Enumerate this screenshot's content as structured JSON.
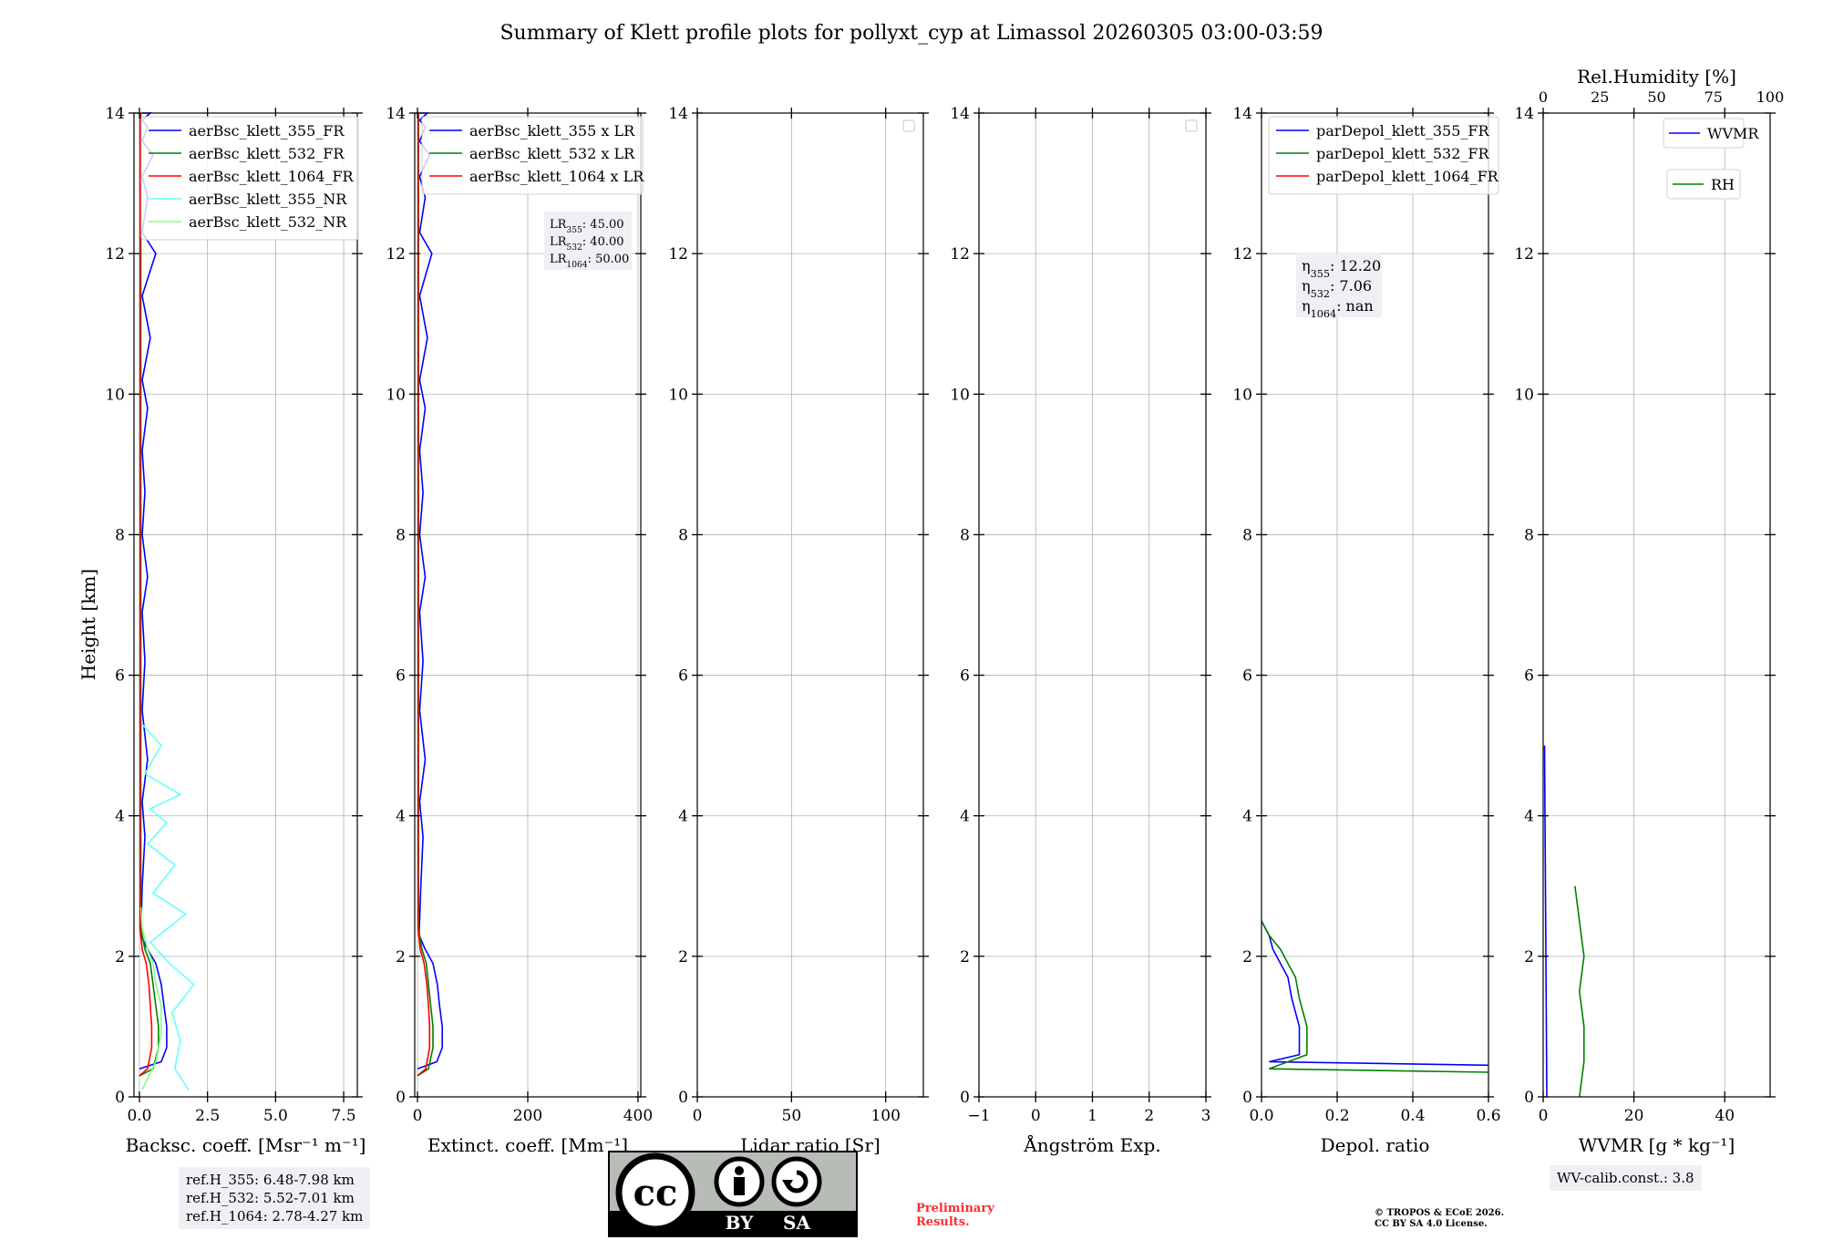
{
  "title": "Summary of Klett profile plots for pollyxt_cyp at Limassol 20260305 03:00-03:59",
  "ylabel": "Height [km]",
  "colors": {
    "c355": "#0000ff",
    "c532": "#008000",
    "c1064": "#ff0000",
    "c355nr": "#66ffff",
    "c532nr": "#80ff80"
  },
  "chart_data": [
    {
      "type": "line",
      "name": "backscatter",
      "xlabel": "Backsc. coeff. [Msr⁻¹ m⁻¹]",
      "xlim": [
        -0.2,
        8.0
      ],
      "xticks": [
        "0.0",
        "2.5",
        "5.0",
        "7.5"
      ],
      "xtick_values": [
        0,
        2.5,
        5,
        7.5
      ],
      "ylim": [
        0,
        14
      ],
      "yticks": [
        "0",
        "2",
        "4",
        "6",
        "8",
        "10",
        "12",
        "14"
      ],
      "legend": [
        "aerBsc_klett_355_FR",
        "aerBsc_klett_532_FR",
        "aerBsc_klett_1064_FR",
        "aerBsc_klett_355_NR",
        "aerBsc_klett_532_NR"
      ],
      "series": [
        {
          "name": "aerBsc_klett_355_FR",
          "color": "#0000ff",
          "x": [
            0.0,
            0.8,
            1.0,
            1.0,
            0.9,
            0.8,
            0.6,
            0.3,
            0.05,
            0.1,
            0.2,
            0.1,
            0.3,
            0.1,
            0.2,
            0.1,
            0.3,
            0.1,
            0.2,
            0.1,
            0.3,
            0.1,
            0.4,
            0.1,
            0.6,
            0.1,
            0.3,
            0.1,
            0.5,
            0.1,
            0.3,
            0.1,
            0.4,
            0.1,
            0.3
          ],
          "y": [
            0.4,
            0.5,
            0.7,
            1.0,
            1.3,
            1.6,
            1.9,
            2.1,
            2.3,
            3.0,
            3.7,
            4.2,
            4.8,
            5.5,
            6.2,
            6.9,
            7.4,
            8.0,
            8.6,
            9.2,
            9.8,
            10.2,
            10.8,
            11.4,
            12.0,
            12.3,
            12.8,
            13.1,
            13.4,
            13.6,
            13.8,
            13.9,
            14.0,
            14.0,
            14.0
          ]
        },
        {
          "name": "aerBsc_klett_532_FR",
          "color": "#008000",
          "x": [
            0.0,
            0.5,
            0.7,
            0.7,
            0.6,
            0.5,
            0.4,
            0.2,
            0.05,
            0.05,
            0.05,
            0.05,
            0.05,
            0.05,
            0.05
          ],
          "y": [
            0.3,
            0.4,
            0.7,
            1.0,
            1.3,
            1.6,
            1.9,
            2.1,
            2.4,
            4.0,
            6.0,
            8.0,
            10.0,
            12.0,
            14.0
          ]
        },
        {
          "name": "aerBsc_klett_1064_FR",
          "color": "#ff0000",
          "x": [
            0.0,
            0.3,
            0.45,
            0.45,
            0.4,
            0.35,
            0.25,
            0.1,
            0.02,
            0.02,
            0.02,
            0.02,
            0.02,
            0.02,
            0.02
          ],
          "y": [
            0.3,
            0.4,
            0.7,
            1.0,
            1.3,
            1.6,
            1.9,
            2.1,
            2.4,
            4.0,
            6.0,
            8.0,
            10.0,
            12.0,
            14.0
          ]
        },
        {
          "name": "aerBsc_klett_355_NR",
          "color": "#66ffff",
          "x": [
            1.8,
            1.3,
            1.5,
            1.2,
            2.0,
            1.1,
            0.4,
            1.7,
            0.5,
            1.3,
            0.3,
            1.0,
            0.4,
            1.5,
            0.2,
            0.8,
            0.1
          ],
          "y": [
            0.1,
            0.4,
            0.8,
            1.2,
            1.6,
            1.9,
            2.2,
            2.6,
            2.9,
            3.3,
            3.6,
            3.9,
            4.1,
            4.3,
            4.6,
            5.0,
            5.3
          ]
        },
        {
          "name": "aerBsc_klett_532_NR",
          "color": "#80ff80",
          "x": [
            0.1,
            0.6,
            0.8,
            0.8,
            0.6,
            0.5,
            0.3,
            0.1,
            0.05
          ],
          "y": [
            0.1,
            0.5,
            0.9,
            1.3,
            1.6,
            1.9,
            2.1,
            2.4,
            2.7
          ]
        }
      ],
      "info": [
        "ref.H_355: 6.48-7.98 km",
        "ref.H_532: 5.52-7.01 km",
        "ref.H_1064: 2.78-4.27 km"
      ]
    },
    {
      "type": "line",
      "name": "extinction",
      "xlabel": "Extinct. coeff. [Mm⁻¹]",
      "xlim": [
        -5,
        405
      ],
      "xticks": [
        "0",
        "200",
        "400"
      ],
      "xtick_values": [
        0,
        200,
        400
      ],
      "ylim": [
        0,
        14
      ],
      "yticks": [
        "0",
        "2",
        "4",
        "6",
        "8",
        "10",
        "12",
        "14"
      ],
      "legend": [
        "aerBsc_klett_355 x LR",
        "aerBsc_klett_532 x LR",
        "aerBsc_klett_1064 x LR"
      ],
      "series": [
        {
          "name": "aerBsc_klett_355 x LR",
          "color": "#0000ff",
          "x": [
            0,
            35,
            45,
            45,
            40,
            36,
            28,
            14,
            3,
            6,
            10,
            4,
            14,
            4,
            10,
            4,
            14,
            4,
            10,
            4,
            14,
            4,
            18,
            4,
            26,
            4,
            14,
            4,
            22,
            4,
            14,
            4,
            18,
            4
          ],
          "y": [
            0.4,
            0.5,
            0.7,
            1.0,
            1.3,
            1.6,
            1.9,
            2.1,
            2.3,
            3.0,
            3.7,
            4.2,
            4.8,
            5.5,
            6.2,
            6.9,
            7.4,
            8.0,
            8.6,
            9.2,
            9.8,
            10.2,
            10.8,
            11.4,
            12.0,
            12.3,
            12.8,
            13.1,
            13.4,
            13.6,
            13.8,
            13.9,
            14.0,
            14.0
          ]
        },
        {
          "name": "aerBsc_klett_532 x LR",
          "color": "#008000",
          "x": [
            0,
            20,
            28,
            28,
            24,
            20,
            16,
            8,
            2,
            2,
            2,
            2,
            2,
            2
          ],
          "y": [
            0.3,
            0.4,
            0.7,
            1.0,
            1.3,
            1.6,
            1.9,
            2.1,
            2.4,
            4.0,
            6.0,
            8.0,
            11.0,
            14.0
          ]
        },
        {
          "name": "aerBsc_klett_1064 x LR",
          "color": "#ff0000",
          "x": [
            0,
            15,
            22,
            22,
            20,
            17,
            12,
            5,
            1,
            1,
            1,
            1,
            1,
            1
          ],
          "y": [
            0.3,
            0.4,
            0.7,
            1.0,
            1.3,
            1.6,
            1.9,
            2.1,
            2.4,
            4.0,
            6.0,
            8.0,
            11.0,
            14.0
          ]
        }
      ],
      "lr_box": [
        {
          "sub": "355",
          "val": ": 45.00"
        },
        {
          "sub": "532",
          "val": ": 40.00"
        },
        {
          "sub": "1064",
          "val": ": 50.00"
        }
      ]
    },
    {
      "type": "line",
      "name": "lidar_ratio",
      "xlabel": "Lidar ratio [Sr]",
      "xlim": [
        0,
        120
      ],
      "xticks": [
        "0",
        "50",
        "100"
      ],
      "xtick_values": [
        0,
        50,
        100
      ],
      "ylim": [
        0,
        14
      ],
      "yticks": [
        "0",
        "2",
        "4",
        "6",
        "8",
        "10",
        "12",
        "14"
      ],
      "series": []
    },
    {
      "type": "line",
      "name": "angstrom",
      "xlabel": "Ångström Exp.",
      "xlim": [
        -1,
        3
      ],
      "xticks": [
        "−1",
        "0",
        "1",
        "2",
        "3"
      ],
      "xtick_values": [
        -1,
        0,
        1,
        2,
        3
      ],
      "ylim": [
        0,
        14
      ],
      "yticks": [
        "0",
        "2",
        "4",
        "6",
        "8",
        "10",
        "12",
        "14"
      ],
      "series": []
    },
    {
      "type": "line",
      "name": "depol",
      "xlabel": "Depol. ratio",
      "xlim": [
        0,
        0.6
      ],
      "xticks": [
        "0.0",
        "0.2",
        "0.4",
        "0.6"
      ],
      "xtick_values": [
        0,
        0.2,
        0.4,
        0.6
      ],
      "ylim": [
        0,
        14
      ],
      "yticks": [
        "0",
        "2",
        "4",
        "6",
        "8",
        "10",
        "12",
        "14"
      ],
      "legend": [
        "parDepol_klett_355_FR",
        "parDepol_klett_532_FR",
        "parDepol_klett_1064_FR"
      ],
      "series": [
        {
          "name": "parDepol_klett_355_FR",
          "color": "#0000ff",
          "x": [
            0.6,
            0.02,
            0.1,
            0.1,
            0.08,
            0.07,
            0.05,
            0.03,
            0.02,
            0.0
          ],
          "y": [
            0.45,
            0.5,
            0.6,
            1.0,
            1.4,
            1.7,
            1.9,
            2.1,
            2.3,
            2.5
          ]
        },
        {
          "name": "parDepol_klett_532_FR",
          "color": "#008000",
          "x": [
            0.6,
            0.02,
            0.12,
            0.12,
            0.1,
            0.09,
            0.07,
            0.05,
            0.02,
            0.0
          ],
          "y": [
            0.35,
            0.4,
            0.6,
            1.0,
            1.4,
            1.7,
            1.9,
            2.1,
            2.3,
            2.5
          ]
        }
      ],
      "eta": [
        {
          "sub": "355",
          "val": ": 12.20"
        },
        {
          "sub": "532",
          "val": ": 7.06"
        },
        {
          "sub": "1064",
          "val": ": nan"
        }
      ]
    },
    {
      "type": "line",
      "name": "wvmr",
      "xlabel": "WVMR [g * kg⁻¹]",
      "xlim": [
        0,
        50
      ],
      "xticks": [
        "0",
        "20",
        "40"
      ],
      "xtick_values": [
        0,
        20,
        40
      ],
      "top_xlabel": "Rel.Humidity [%]",
      "top_xticks": [
        "0",
        "25",
        "50",
        "75",
        "100"
      ],
      "top_xtick_values": [
        0,
        25,
        50,
        75,
        100
      ],
      "ylim": [
        0,
        14
      ],
      "yticks": [
        "0",
        "2",
        "4",
        "6",
        "8",
        "10",
        "12",
        "14"
      ],
      "legend": [
        "WVMR",
        "RH"
      ],
      "series": [
        {
          "name": "WVMR",
          "color": "#0000ff",
          "x": [
            0.8,
            0.7,
            0.6,
            0.5,
            0.4,
            0.3
          ],
          "y": [
            0.0,
            1.0,
            2.0,
            3.0,
            4.0,
            5.0
          ]
        },
        {
          "name": "RH",
          "color": "#008000",
          "x": [
            8,
            9,
            9,
            8,
            9,
            8,
            7
          ],
          "y": [
            0.0,
            0.5,
            1.0,
            1.5,
            2.0,
            2.5,
            3.0
          ]
        }
      ],
      "info": [
        "WV-calib.const.: 3.8"
      ]
    }
  ],
  "footer": {
    "preliminary": [
      "Preliminary",
      "Results."
    ],
    "copyright": [
      "© TROPOS & ECoE 2026.",
      "CC BY SA 4.0 License."
    ],
    "cc_labels": {
      "cc": "cc",
      "by": "BY",
      "sa": "SA"
    }
  }
}
